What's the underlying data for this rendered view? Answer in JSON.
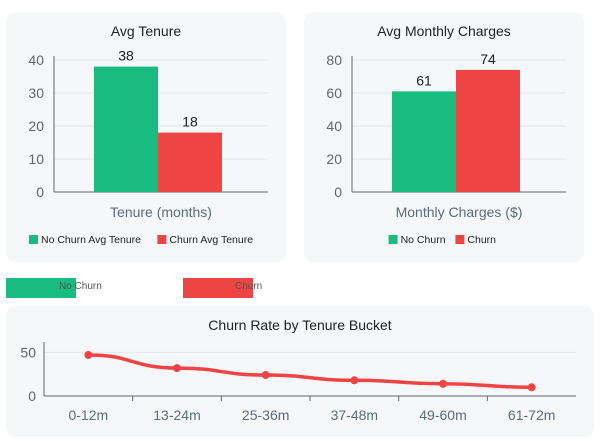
{
  "colors": {
    "no_churn": "#18bc80",
    "churn": "#ef4444",
    "axis": "#666666",
    "grid": "#e3e6ea"
  },
  "outer_legend": {
    "no_churn_label": "No Churn",
    "churn_label": "Churn"
  },
  "chart_data": [
    {
      "id": "tenure",
      "type": "bar",
      "title": "Avg Tenure",
      "xlabel": "Tenure (months)",
      "ylabel": "",
      "ylim": [
        0,
        40
      ],
      "yticks": [
        0,
        10,
        20,
        30,
        40
      ],
      "series": [
        {
          "name": "No Churn Avg Tenure",
          "values": [
            38
          ],
          "color": "#18bc80"
        },
        {
          "name": "Churn Avg Tenure",
          "values": [
            18
          ],
          "color": "#ef4444"
        }
      ],
      "data_labels": [
        "38",
        "18"
      ],
      "legend_position": "bottom",
      "grid": true
    },
    {
      "id": "charges",
      "type": "bar",
      "title": "Avg Monthly Charges",
      "xlabel": "Monthly Charges ($)",
      "ylabel": "",
      "ylim": [
        0,
        80
      ],
      "yticks": [
        0,
        20,
        40,
        60,
        80
      ],
      "series": [
        {
          "name": "No Churn",
          "values": [
            61
          ],
          "color": "#18bc80"
        },
        {
          "name": "Churn",
          "values": [
            74
          ],
          "color": "#ef4444"
        }
      ],
      "data_labels": [
        "61",
        "74"
      ],
      "legend_position": "bottom",
      "grid": true
    },
    {
      "id": "churnrate",
      "type": "line",
      "title": "Churn Rate by Tenure Bucket",
      "xlabel": "",
      "ylabel": "",
      "categories": [
        "0-12m",
        "13-24m",
        "25-36m",
        "37-48m",
        "49-60m",
        "61-72m"
      ],
      "series": [
        {
          "name": "",
          "values": [
            47,
            32,
            24,
            18,
            14,
            10
          ],
          "color": "#ef4444"
        }
      ],
      "ylim": [
        0,
        55
      ],
      "yticks": [
        0,
        50
      ],
      "grid": true
    }
  ]
}
